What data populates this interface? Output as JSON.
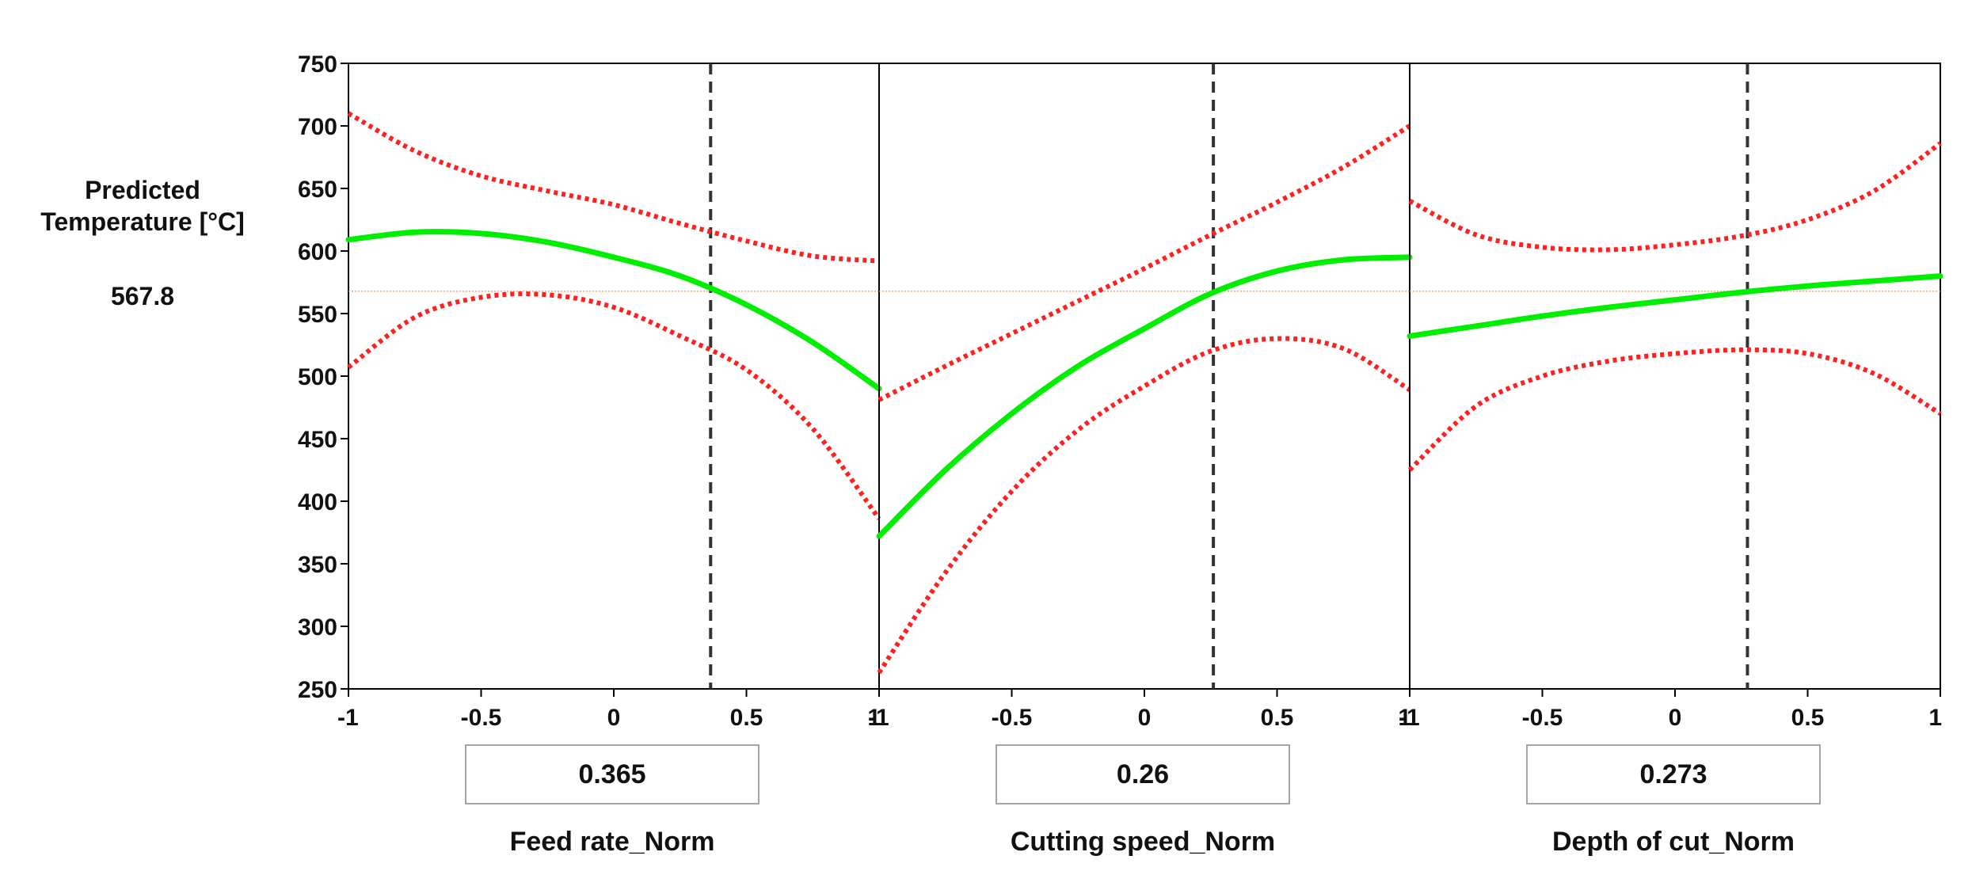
{
  "response": {
    "label_line1": "Predicted",
    "label_line2": "Temperature [°C]",
    "value": "567.8"
  },
  "chart_data": {
    "type": "line",
    "title": "",
    "ylabel": "Predicted Temperature [°C]",
    "ylim": [
      250,
      750
    ],
    "yticks": [
      250,
      300,
      350,
      400,
      450,
      500,
      550,
      600,
      650,
      700,
      750
    ],
    "xlim": [
      -1,
      1
    ],
    "xticks": [
      -1,
      -0.5,
      0,
      0.5,
      1
    ],
    "xtick_labels": [
      "-1",
      "-0.5",
      "0",
      "0.5",
      "1"
    ],
    "reference_level": 567.8,
    "colors": {
      "prediction": "#00ee00",
      "bounds": "#ff2020",
      "reference": "#f4a070",
      "cursor": "#333333",
      "axes": "#000000"
    },
    "panels": [
      {
        "factor": "Feed rate_Norm",
        "current_value": "0.365",
        "cursor_x": 0.365,
        "x": [
          -1,
          -0.75,
          -0.5,
          -0.25,
          0,
          0.25,
          0.5,
          0.75,
          1
        ],
        "prediction": [
          609,
          615,
          614,
          607,
          595,
          580,
          557,
          527,
          490
        ],
        "upper": [
          710,
          680,
          660,
          648,
          637,
          622,
          608,
          596,
          592
        ],
        "lower": [
          507,
          547,
          563,
          565,
          555,
          532,
          505,
          458,
          386
        ]
      },
      {
        "factor": "Cutting speed_Norm",
        "current_value": "0.26",
        "cursor_x": 0.26,
        "x": [
          -1,
          -0.75,
          -0.5,
          -0.25,
          0,
          0.25,
          0.5,
          0.75,
          1
        ],
        "prediction": [
          372,
          425,
          470,
          508,
          538,
          566,
          584,
          593,
          595
        ],
        "upper": [
          481,
          508,
          534,
          560,
          586,
          613,
          639,
          667,
          700
        ],
        "lower": [
          263,
          343,
          408,
          457,
          492,
          520,
          530,
          522,
          489
        ]
      },
      {
        "factor": "Depth of cut_Norm",
        "current_value": "0.273",
        "cursor_x": 0.273,
        "x": [
          -1,
          -0.75,
          -0.5,
          -0.25,
          0,
          0.25,
          0.5,
          0.75,
          1
        ],
        "prediction": [
          532,
          540,
          548,
          555,
          561,
          567,
          572,
          576,
          580
        ],
        "upper": [
          640,
          613,
          603,
          601,
          605,
          612,
          625,
          648,
          686
        ],
        "lower": [
          425,
          476,
          500,
          512,
          518,
          521,
          518,
          502,
          470
        ]
      }
    ]
  }
}
